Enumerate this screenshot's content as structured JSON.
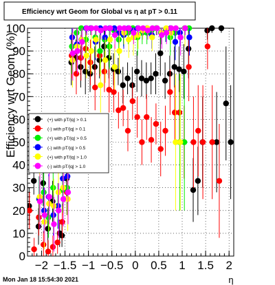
{
  "chart_data": {
    "type": "scatter",
    "title": "Efficiency wrt Geom for Global vs   η at pT > 0.11",
    "xlabel": "η",
    "ylabel": "Efficiency wrt Geom (%)",
    "xlim": [
      -2.3,
      2.1
    ],
    "ylim": [
      0,
      100
    ],
    "xticks": [
      -2,
      -1.5,
      -1,
      -0.5,
      0,
      0.5,
      1,
      1.5,
      2
    ],
    "xtick_labels": [
      "−2",
      "−1.5",
      "−1",
      "−0.5",
      "0",
      "0.5",
      "1",
      "1.5",
      "2"
    ],
    "yticks": [
      0,
      10,
      20,
      30,
      40,
      50,
      60,
      70,
      80,
      90,
      100
    ],
    "ytick_labels": [
      "0",
      "10",
      "20",
      "30",
      "40",
      "50",
      "60",
      "70",
      "80",
      "90",
      "100"
    ],
    "grid": true,
    "legend_position": "left, middle",
    "series": [
      {
        "name": "(+) with pT/|q| > 0.1",
        "color": "#000000",
        "points": [
          [
            -2.25,
            22,
            8
          ],
          [
            -2.15,
            33,
            6
          ],
          [
            -2.05,
            13,
            8
          ],
          [
            -1.95,
            32,
            10
          ],
          [
            -1.85,
            12,
            9
          ],
          [
            -1.75,
            24,
            9
          ],
          [
            -1.6,
            10,
            6
          ],
          [
            -1.55,
            9,
            5
          ],
          [
            -1.45,
            34,
            10
          ],
          [
            -1.35,
            85,
            10
          ],
          [
            -1.25,
            87,
            8
          ],
          [
            -1.15,
            83,
            9
          ],
          [
            -1.05,
            81,
            10
          ],
          [
            -0.95,
            80,
            8
          ],
          [
            -0.85,
            83,
            9
          ],
          [
            -0.75,
            86,
            8
          ],
          [
            -0.65,
            92,
            10
          ],
          [
            -0.55,
            87,
            9
          ],
          [
            -0.45,
            82,
            7
          ],
          [
            -0.35,
            81,
            6
          ],
          [
            -0.25,
            75,
            8
          ],
          [
            -0.15,
            78,
            7
          ],
          [
            -0.05,
            75,
            8
          ],
          [
            0.05,
            81,
            9
          ],
          [
            0.15,
            78,
            8
          ],
          [
            0.25,
            77,
            8
          ],
          [
            0.35,
            78,
            7
          ],
          [
            0.45,
            80,
            9
          ],
          [
            0.55,
            89,
            10
          ],
          [
            0.65,
            77,
            8
          ],
          [
            0.75,
            80,
            8
          ],
          [
            0.85,
            83,
            9
          ],
          [
            0.95,
            82,
            10
          ],
          [
            1.05,
            81,
            12
          ],
          [
            1.15,
            91,
            13
          ],
          [
            1.25,
            29,
            14
          ],
          [
            1.35,
            33,
            15
          ],
          [
            1.45,
            50,
            20
          ],
          [
            1.55,
            99,
            4
          ],
          [
            1.65,
            100,
            2
          ],
          [
            1.75,
            50,
            22
          ],
          [
            1.85,
            100,
            2
          ],
          [
            1.95,
            67,
            25
          ],
          [
            2.05,
            50,
            25
          ]
        ]
      },
      {
        "name": "(-) with pT/|q| > 0.1",
        "color": "#ff0000",
        "points": [
          [
            -2.25,
            20,
            8
          ],
          [
            -2.15,
            3,
            5
          ],
          [
            -2.05,
            17,
            8
          ],
          [
            -1.95,
            5,
            6
          ],
          [
            -1.85,
            2,
            5
          ],
          [
            -1.75,
            4,
            5
          ],
          [
            -1.65,
            6,
            5
          ],
          [
            -1.55,
            15,
            8
          ],
          [
            -1.45,
            28,
            10
          ],
          [
            -1.35,
            88,
            10
          ],
          [
            -1.25,
            80,
            9
          ],
          [
            -1.15,
            87,
            10
          ],
          [
            -1.05,
            91,
            9
          ],
          [
            -0.95,
            85,
            10
          ],
          [
            -0.85,
            74,
            10
          ],
          [
            -0.75,
            88,
            9
          ],
          [
            -0.65,
            81,
            9
          ],
          [
            -0.55,
            73,
            10
          ],
          [
            -0.45,
            72,
            9
          ],
          [
            -0.35,
            64,
            8
          ],
          [
            -0.25,
            65,
            8
          ],
          [
            -0.15,
            55,
            9
          ],
          [
            -0.05,
            68,
            8
          ],
          [
            0.05,
            61,
            9
          ],
          [
            0.15,
            50,
            10
          ],
          [
            0.25,
            61,
            10
          ],
          [
            0.35,
            51,
            10
          ],
          [
            0.45,
            58,
            9
          ],
          [
            0.55,
            47,
            12
          ],
          [
            0.65,
            55,
            11
          ],
          [
            0.75,
            72,
            10
          ],
          [
            0.85,
            63,
            12
          ],
          [
            0.95,
            63,
            14
          ],
          [
            1.05,
            50,
            16
          ],
          [
            1.15,
            83,
            15
          ],
          [
            1.25,
            50,
            20
          ],
          [
            1.35,
            55,
            20
          ],
          [
            1.45,
            50,
            25
          ],
          [
            1.55,
            92,
            10
          ],
          [
            1.65,
            50,
            25
          ],
          [
            1.8,
            33,
            25
          ]
        ]
      },
      {
        "name": "(+) with pT/|q| > 0.5",
        "color": "#00ee00",
        "points": [
          [
            -2.05,
            25,
            10
          ],
          [
            -1.95,
            28,
            10
          ],
          [
            -1.85,
            17,
            9
          ],
          [
            -1.75,
            30,
            12
          ],
          [
            -1.65,
            22,
            10
          ],
          [
            -1.55,
            29,
            10
          ],
          [
            -1.45,
            30,
            12
          ],
          [
            -1.35,
            92,
            12
          ],
          [
            -1.25,
            98,
            5
          ],
          [
            -1.15,
            100,
            3
          ],
          [
            -1.05,
            95,
            8
          ],
          [
            -0.95,
            100,
            3
          ],
          [
            -0.85,
            96,
            6
          ],
          [
            -0.75,
            90,
            10
          ],
          [
            -0.65,
            95,
            8
          ],
          [
            -0.55,
            92,
            10
          ],
          [
            -0.45,
            99,
            3
          ],
          [
            -0.35,
            95,
            7
          ],
          [
            -0.25,
            97,
            5
          ],
          [
            -0.15,
            98,
            5
          ],
          [
            -0.05,
            100,
            3
          ],
          [
            0.05,
            96,
            8
          ],
          [
            0.15,
            98,
            5
          ],
          [
            0.25,
            98,
            5
          ],
          [
            0.35,
            99,
            4
          ],
          [
            0.45,
            100,
            3
          ],
          [
            0.55,
            98,
            5
          ],
          [
            0.65,
            99,
            5
          ],
          [
            0.75,
            96,
            8
          ],
          [
            0.85,
            98,
            6
          ],
          [
            0.95,
            50,
            30
          ],
          [
            1.05,
            50,
            30
          ],
          [
            1.15,
            100,
            5
          ]
        ]
      },
      {
        "name": "(-) with pT/|q| > 0.5",
        "color": "#0000ff",
        "points": [
          [
            -2.05,
            25,
            10
          ],
          [
            -1.95,
            20,
            10
          ],
          [
            -1.85,
            26,
            10
          ],
          [
            -1.75,
            18,
            9
          ],
          [
            -1.65,
            22,
            10
          ],
          [
            -1.55,
            34,
            12
          ],
          [
            -1.45,
            35,
            12
          ],
          [
            -1.35,
            96,
            6
          ],
          [
            -1.25,
            93,
            8
          ],
          [
            -1.15,
            95,
            8
          ],
          [
            -1.05,
            100,
            3
          ],
          [
            -0.95,
            100,
            3
          ],
          [
            -0.85,
            94,
            8
          ],
          [
            -0.75,
            100,
            3
          ],
          [
            -0.65,
            96,
            6
          ],
          [
            -0.55,
            100,
            3
          ],
          [
            -0.45,
            100,
            3
          ],
          [
            -0.35,
            98,
            5
          ],
          [
            -0.25,
            97,
            6
          ],
          [
            -0.15,
            100,
            3
          ],
          [
            -0.05,
            99,
            4
          ],
          [
            0.05,
            100,
            3
          ],
          [
            0.15,
            99,
            4
          ],
          [
            0.25,
            100,
            3
          ],
          [
            0.35,
            97,
            6
          ],
          [
            0.45,
            100,
            3
          ],
          [
            0.55,
            98,
            5
          ],
          [
            0.65,
            99,
            5
          ],
          [
            0.75,
            100,
            3
          ],
          [
            0.85,
            94,
            8
          ],
          [
            0.95,
            98,
            6
          ],
          [
            1.05,
            100,
            5
          ],
          [
            1.15,
            96,
            8
          ]
        ]
      },
      {
        "name": "(+) with pT/|q| > 1.0",
        "color": "#ffff00",
        "points": [
          [
            -2.05,
            26,
            12
          ],
          [
            -1.95,
            15,
            12
          ],
          [
            -1.85,
            23,
            12
          ],
          [
            -1.75,
            22,
            12
          ],
          [
            -1.65,
            28,
            12
          ],
          [
            -1.55,
            30,
            12
          ],
          [
            -1.45,
            25,
            14
          ],
          [
            -1.35,
            86,
            12
          ],
          [
            -1.25,
            92,
            10
          ],
          [
            -1.15,
            95,
            8
          ],
          [
            -1.05,
            88,
            10
          ],
          [
            -0.95,
            90,
            10
          ],
          [
            -0.85,
            95,
            8
          ],
          [
            -0.75,
            75,
            12
          ],
          [
            -0.65,
            86,
            10
          ],
          [
            -0.55,
            95,
            8
          ],
          [
            -0.45,
            83,
            10
          ],
          [
            -0.35,
            90,
            10
          ],
          [
            -0.25,
            98,
            5
          ],
          [
            -0.15,
            95,
            8
          ],
          [
            -0.05,
            96,
            8
          ],
          [
            0.05,
            97,
            6
          ],
          [
            0.15,
            99,
            4
          ],
          [
            0.25,
            100,
            3
          ],
          [
            0.35,
            96,
            6
          ],
          [
            0.45,
            100,
            3
          ],
          [
            0.55,
            98,
            5
          ],
          [
            0.65,
            100,
            3
          ],
          [
            0.75,
            98,
            5
          ],
          [
            0.85,
            50,
            30
          ],
          [
            0.95,
            50,
            30
          ],
          [
            1.05,
            100,
            8
          ]
        ]
      },
      {
        "name": "(-) with pT/|q| > 1.0",
        "color": "#ff00ff",
        "points": [
          [
            -2.05,
            24,
            12
          ],
          [
            -1.95,
            18,
            12
          ],
          [
            -1.85,
            26,
            12
          ],
          [
            -1.75,
            14,
            12
          ],
          [
            -1.65,
            20,
            12
          ],
          [
            -1.55,
            25,
            12
          ],
          [
            -1.45,
            28,
            14
          ],
          [
            -1.35,
            89,
            12
          ],
          [
            -1.25,
            90,
            10
          ],
          [
            -1.15,
            94,
            8
          ],
          [
            -1.05,
            100,
            3
          ],
          [
            -0.95,
            100,
            3
          ],
          [
            -0.85,
            100,
            3
          ],
          [
            -0.75,
            99,
            4
          ],
          [
            -0.65,
            100,
            3
          ],
          [
            -0.55,
            100,
            3
          ],
          [
            -0.45,
            97,
            6
          ],
          [
            -0.35,
            100,
            3
          ],
          [
            -0.25,
            100,
            3
          ],
          [
            -0.15,
            100,
            3
          ],
          [
            -0.05,
            98,
            5
          ],
          [
            0.05,
            100,
            3
          ],
          [
            0.15,
            100,
            3
          ],
          [
            0.25,
            99,
            4
          ],
          [
            0.35,
            100,
            3
          ],
          [
            0.45,
            100,
            3
          ],
          [
            0.55,
            97,
            6
          ],
          [
            0.65,
            98,
            5
          ],
          [
            0.75,
            100,
            3
          ],
          [
            0.85,
            100,
            3
          ],
          [
            0.95,
            96,
            8
          ],
          [
            1.05,
            100,
            3
          ]
        ]
      }
    ]
  },
  "footer": {
    "timestamp": "Mon Jan 18 15:54:30 2021"
  }
}
